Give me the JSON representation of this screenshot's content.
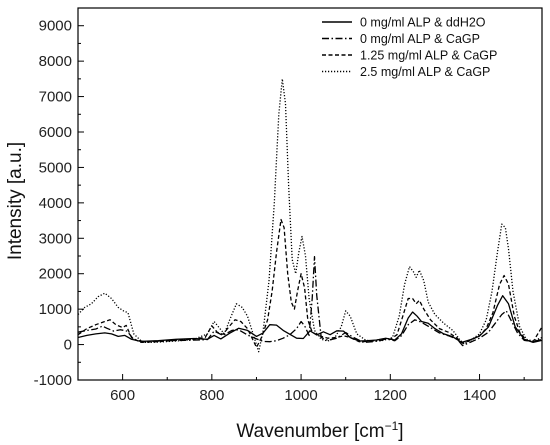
{
  "chart_data": {
    "type": "line",
    "xlabel": "Wavenumber [cm",
    "xlabel_sup": "−1",
    "xlabel_end": "]",
    "ylabel": "Intensity [a.u.]",
    "xlim": [
      500,
      1540
    ],
    "ylim": [
      -1000,
      9500
    ],
    "x_ticks": [
      600,
      800,
      1000,
      1200,
      1400
    ],
    "y_ticks": [
      -1000,
      0,
      1000,
      2000,
      3000,
      4000,
      5000,
      6000,
      7000,
      8000,
      9000
    ],
    "legend_position": "top-right",
    "series": [
      {
        "name": "0 mg/ml ALP & ddH2O",
        "style": "solid",
        "color": "#000000",
        "points": [
          [
            500,
            200
          ],
          [
            520,
            260
          ],
          [
            540,
            300
          ],
          [
            560,
            330
          ],
          [
            575,
            300
          ],
          [
            590,
            230
          ],
          [
            605,
            260
          ],
          [
            620,
            150
          ],
          [
            640,
            90
          ],
          [
            680,
            110
          ],
          [
            720,
            150
          ],
          [
            760,
            170
          ],
          [
            790,
            150
          ],
          [
            805,
            260
          ],
          [
            820,
            160
          ],
          [
            840,
            320
          ],
          [
            860,
            460
          ],
          [
            880,
            400
          ],
          [
            900,
            230
          ],
          [
            915,
            330
          ],
          [
            930,
            560
          ],
          [
            945,
            550
          ],
          [
            960,
            400
          ],
          [
            975,
            290
          ],
          [
            990,
            180
          ],
          [
            1005,
            170
          ],
          [
            1020,
            390
          ],
          [
            1035,
            270
          ],
          [
            1050,
            360
          ],
          [
            1065,
            280
          ],
          [
            1080,
            390
          ],
          [
            1095,
            380
          ],
          [
            1110,
            200
          ],
          [
            1130,
            100
          ],
          [
            1150,
            110
          ],
          [
            1170,
            130
          ],
          [
            1190,
            180
          ],
          [
            1210,
            130
          ],
          [
            1225,
            300
          ],
          [
            1240,
            750
          ],
          [
            1250,
            920
          ],
          [
            1260,
            800
          ],
          [
            1270,
            650
          ],
          [
            1285,
            600
          ],
          [
            1300,
            450
          ],
          [
            1320,
            300
          ],
          [
            1340,
            220
          ],
          [
            1360,
            60
          ],
          [
            1380,
            140
          ],
          [
            1400,
            240
          ],
          [
            1420,
            500
          ],
          [
            1440,
            1100
          ],
          [
            1452,
            1380
          ],
          [
            1465,
            1150
          ],
          [
            1480,
            500
          ],
          [
            1500,
            150
          ],
          [
            1520,
            60
          ],
          [
            1540,
            120
          ]
        ]
      },
      {
        "name": "0 mg/ml ALP & CaGP",
        "style": "dashdot",
        "color": "#000000",
        "points": [
          [
            500,
            350
          ],
          [
            520,
            400
          ],
          [
            540,
            440
          ],
          [
            555,
            520
          ],
          [
            565,
            460
          ],
          [
            580,
            380
          ],
          [
            595,
            420
          ],
          [
            610,
            380
          ],
          [
            625,
            140
          ],
          [
            650,
            80
          ],
          [
            700,
            110
          ],
          [
            740,
            120
          ],
          [
            770,
            130
          ],
          [
            790,
            140
          ],
          [
            805,
            380
          ],
          [
            825,
            260
          ],
          [
            845,
            400
          ],
          [
            860,
            420
          ],
          [
            880,
            270
          ],
          [
            900,
            160
          ],
          [
            915,
            90
          ],
          [
            930,
            80
          ],
          [
            945,
            110
          ],
          [
            960,
            180
          ],
          [
            975,
            280
          ],
          [
            990,
            450
          ],
          [
            1000,
            650
          ],
          [
            1008,
            530
          ],
          [
            1018,
            260
          ],
          [
            1025,
            1300
          ],
          [
            1030,
            2480
          ],
          [
            1035,
            1400
          ],
          [
            1045,
            200
          ],
          [
            1060,
            120
          ],
          [
            1080,
            180
          ],
          [
            1100,
            340
          ],
          [
            1115,
            220
          ],
          [
            1140,
            60
          ],
          [
            1160,
            80
          ],
          [
            1175,
            100
          ],
          [
            1190,
            160
          ],
          [
            1210,
            110
          ],
          [
            1225,
            250
          ],
          [
            1240,
            560
          ],
          [
            1255,
            700
          ],
          [
            1270,
            630
          ],
          [
            1290,
            480
          ],
          [
            1310,
            330
          ],
          [
            1330,
            250
          ],
          [
            1350,
            150
          ],
          [
            1362,
            -30
          ],
          [
            1380,
            70
          ],
          [
            1400,
            180
          ],
          [
            1420,
            350
          ],
          [
            1435,
            600
          ],
          [
            1450,
            850
          ],
          [
            1460,
            950
          ],
          [
            1470,
            700
          ],
          [
            1485,
            330
          ],
          [
            1500,
            120
          ],
          [
            1520,
            80
          ],
          [
            1540,
            150
          ]
        ]
      },
      {
        "name": "1.25 mg/ml ALP & CaGP",
        "style": "dashed",
        "color": "#000000",
        "points": [
          [
            500,
            280
          ],
          [
            520,
            450
          ],
          [
            540,
            560
          ],
          [
            560,
            650
          ],
          [
            572,
            700
          ],
          [
            585,
            560
          ],
          [
            600,
            480
          ],
          [
            608,
            540
          ],
          [
            620,
            200
          ],
          [
            640,
            60
          ],
          [
            680,
            80
          ],
          [
            720,
            120
          ],
          [
            760,
            160
          ],
          [
            785,
            200
          ],
          [
            800,
            530
          ],
          [
            812,
            350
          ],
          [
            825,
            290
          ],
          [
            838,
            500
          ],
          [
            852,
            700
          ],
          [
            865,
            650
          ],
          [
            880,
            450
          ],
          [
            900,
            -80
          ],
          [
            912,
            220
          ],
          [
            925,
            700
          ],
          [
            935,
            1500
          ],
          [
            945,
            2600
          ],
          [
            955,
            3530
          ],
          [
            962,
            3300
          ],
          [
            970,
            2000
          ],
          [
            978,
            1200
          ],
          [
            985,
            1000
          ],
          [
            992,
            1500
          ],
          [
            1000,
            2000
          ],
          [
            1008,
            1600
          ],
          [
            1015,
            700
          ],
          [
            1025,
            350
          ],
          [
            1040,
            250
          ],
          [
            1060,
            180
          ],
          [
            1080,
            200
          ],
          [
            1095,
            250
          ],
          [
            1110,
            200
          ],
          [
            1130,
            80
          ],
          [
            1150,
            90
          ],
          [
            1170,
            130
          ],
          [
            1185,
            160
          ],
          [
            1200,
            150
          ],
          [
            1215,
            280
          ],
          [
            1228,
            800
          ],
          [
            1240,
            1300
          ],
          [
            1250,
            1300
          ],
          [
            1258,
            1150
          ],
          [
            1265,
            1250
          ],
          [
            1275,
            1000
          ],
          [
            1290,
            700
          ],
          [
            1310,
            450
          ],
          [
            1330,
            350
          ],
          [
            1350,
            180
          ],
          [
            1362,
            40
          ],
          [
            1380,
            120
          ],
          [
            1400,
            250
          ],
          [
            1415,
            450
          ],
          [
            1430,
            900
          ],
          [
            1445,
            1700
          ],
          [
            1455,
            1950
          ],
          [
            1465,
            1700
          ],
          [
            1478,
            800
          ],
          [
            1490,
            350
          ],
          [
            1505,
            120
          ],
          [
            1520,
            80
          ],
          [
            1540,
            500
          ]
        ]
      },
      {
        "name": "2.5 mg/ml ALP & CaGP",
        "style": "dotted",
        "color": "#000000",
        "points": [
          [
            500,
            850
          ],
          [
            515,
            1050
          ],
          [
            530,
            1150
          ],
          [
            545,
            1350
          ],
          [
            560,
            1450
          ],
          [
            575,
            1300
          ],
          [
            590,
            1050
          ],
          [
            602,
            950
          ],
          [
            612,
            900
          ],
          [
            625,
            300
          ],
          [
            645,
            60
          ],
          [
            680,
            70
          ],
          [
            720,
            100
          ],
          [
            760,
            150
          ],
          [
            790,
            300
          ],
          [
            805,
            650
          ],
          [
            815,
            500
          ],
          [
            828,
            300
          ],
          [
            840,
            700
          ],
          [
            855,
            1150
          ],
          [
            868,
            1050
          ],
          [
            880,
            800
          ],
          [
            895,
            200
          ],
          [
            905,
            -200
          ],
          [
            915,
            400
          ],
          [
            928,
            1800
          ],
          [
            940,
            4000
          ],
          [
            950,
            6500
          ],
          [
            958,
            7500
          ],
          [
            965,
            6800
          ],
          [
            972,
            4500
          ],
          [
            980,
            2400
          ],
          [
            988,
            2000
          ],
          [
            995,
            2600
          ],
          [
            1002,
            3050
          ],
          [
            1010,
            2500
          ],
          [
            1018,
            1300
          ],
          [
            1030,
            400
          ],
          [
            1045,
            150
          ],
          [
            1060,
            100
          ],
          [
            1075,
            180
          ],
          [
            1090,
            500
          ],
          [
            1100,
            950
          ],
          [
            1110,
            800
          ],
          [
            1125,
            300
          ],
          [
            1145,
            120
          ],
          [
            1165,
            100
          ],
          [
            1185,
            120
          ],
          [
            1205,
            200
          ],
          [
            1220,
            800
          ],
          [
            1232,
            1700
          ],
          [
            1243,
            2200
          ],
          [
            1252,
            2050
          ],
          [
            1258,
            1900
          ],
          [
            1265,
            2100
          ],
          [
            1275,
            1800
          ],
          [
            1285,
            1200
          ],
          [
            1300,
            850
          ],
          [
            1320,
            600
          ],
          [
            1340,
            400
          ],
          [
            1355,
            150
          ],
          [
            1365,
            20
          ],
          [
            1380,
            120
          ],
          [
            1400,
            300
          ],
          [
            1415,
            700
          ],
          [
            1428,
            1500
          ],
          [
            1440,
            2600
          ],
          [
            1450,
            3400
          ],
          [
            1458,
            3300
          ],
          [
            1465,
            2700
          ],
          [
            1475,
            1500
          ],
          [
            1490,
            500
          ],
          [
            1505,
            150
          ],
          [
            1520,
            100
          ],
          [
            1540,
            200
          ]
        ]
      }
    ]
  }
}
